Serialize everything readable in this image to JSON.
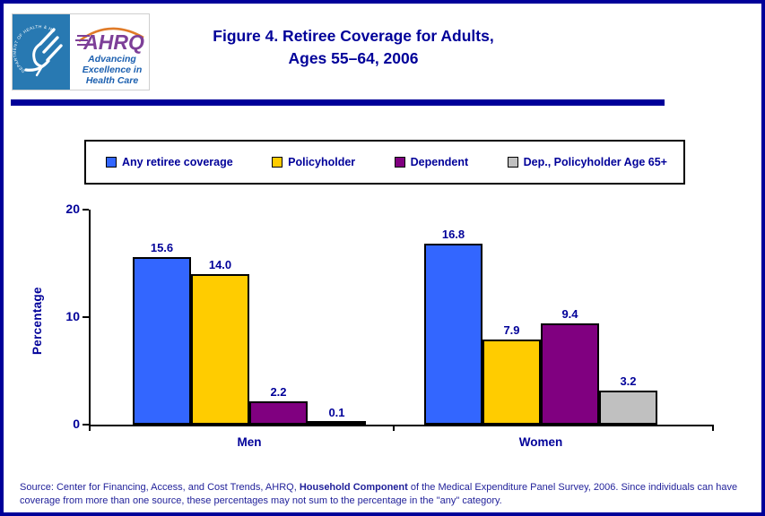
{
  "page": {
    "accent_color": "#000099",
    "background": "#ffffff"
  },
  "header": {
    "title_line1": "Figure 4. Retiree Coverage for Adults,",
    "title_line2": "Ages 55–64, 2006",
    "logo": {
      "hhs_ring_text": "DEPARTMENT OF HEALTH & HUMAN SERVICES • USA",
      "ahrq_acronym": "AHRQ",
      "tagline_line1": "Advancing",
      "tagline_line2": "Excellence in",
      "tagline_line3": "Health Care",
      "hhs_blue": "#2879B2",
      "ahrq_purple": "#7D3F98",
      "arc_orange": "#E07B28",
      "tagline_blue": "#1B5FAF"
    }
  },
  "legend": {
    "items": [
      {
        "label": "Any retiree coverage",
        "color": "#3366FF"
      },
      {
        "label": "Policyholder",
        "color": "#FFCC00"
      },
      {
        "label": "Dependent",
        "color": "#800080"
      },
      {
        "label": "Dep., Policyholder Age 65+",
        "color": "#C0C0C0"
      }
    ]
  },
  "chart_data": {
    "type": "bar",
    "title": "Figure 4. Retiree Coverage for Adults, Ages 55–64, 2006",
    "categories": [
      "Men",
      "Women"
    ],
    "series": [
      {
        "name": "Any retiree coverage",
        "color": "#3366FF",
        "values": [
          15.6,
          16.8
        ]
      },
      {
        "name": "Policyholder",
        "color": "#FFCC00",
        "values": [
          14.0,
          7.9
        ]
      },
      {
        "name": "Dependent",
        "color": "#800080",
        "values": [
          2.2,
          9.4
        ]
      },
      {
        "name": "Dep., Policyholder Age 65+",
        "color": "#C0C0C0",
        "values": [
          0.1,
          3.2
        ]
      }
    ],
    "xlabel": "",
    "ylabel": "Percentage",
    "ylim": [
      0,
      20
    ],
    "y_ticks": [
      0,
      10,
      20
    ],
    "value_labels": true,
    "value_label_decimals": 1,
    "grid": false,
    "legend_position": "top"
  },
  "footer": {
    "source_prefix": "Source: Center for Financing, Access, and Cost Trends, AHRQ, ",
    "source_bold": "Household Component",
    "source_suffix": " of the Medical Expenditure Panel Survey, 2006. Since individuals can have coverage from more than one source, these percentages may not sum to the percentage in the \"any\" category."
  }
}
